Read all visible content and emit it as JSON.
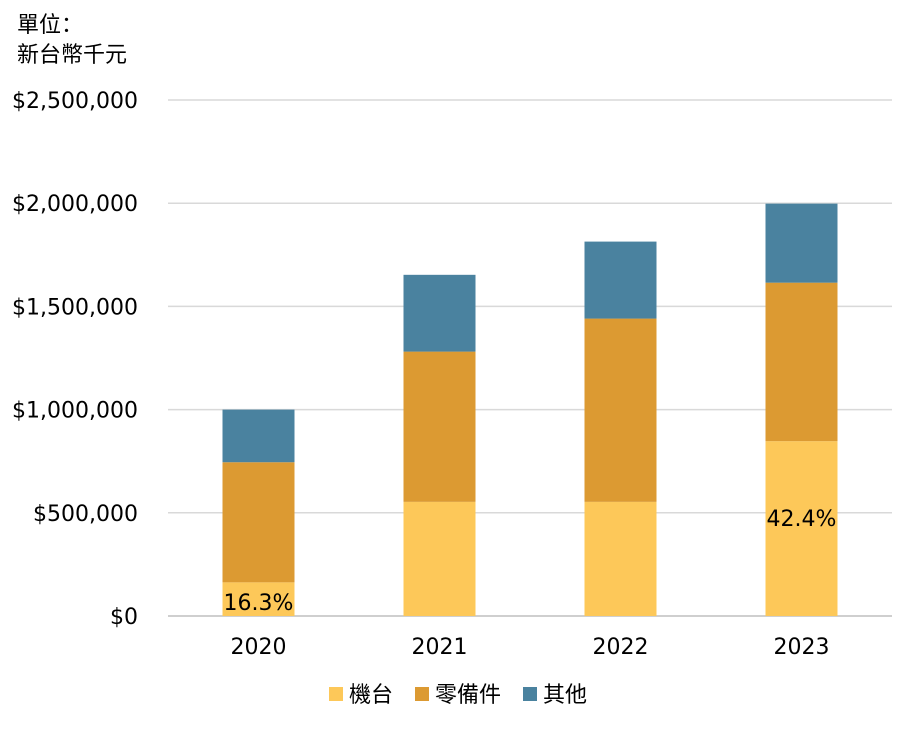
{
  "chart_data": {
    "type": "bar",
    "stacked": true,
    "unit_label": [
      "單位：",
      "新台幣千元"
    ],
    "categories": [
      "2020",
      "2021",
      "2022",
      "2023"
    ],
    "series": [
      {
        "name": "機台",
        "values": [
          163000,
          553000,
          553000,
          847000
        ],
        "color": "#FDC859"
      },
      {
        "name": "零備件",
        "values": [
          582000,
          728000,
          888000,
          768000
        ],
        "color": "#DC9A32"
      },
      {
        "name": "其他",
        "values": [
          255000,
          372000,
          373000,
          383000
        ],
        "color": "#4A829F"
      }
    ],
    "y_ticks": [
      "$0",
      "$500,000",
      "$1,000,000",
      "$1,500,000",
      "$2,000,000",
      "$2,500,000"
    ],
    "ylim": [
      0,
      2500000
    ],
    "grid": true,
    "legend_position": "bottom",
    "annotations": [
      {
        "category": "2020",
        "series": "機台",
        "text": "16.3%"
      },
      {
        "category": "2023",
        "series": "機台",
        "text": "42.4%"
      }
    ]
  }
}
